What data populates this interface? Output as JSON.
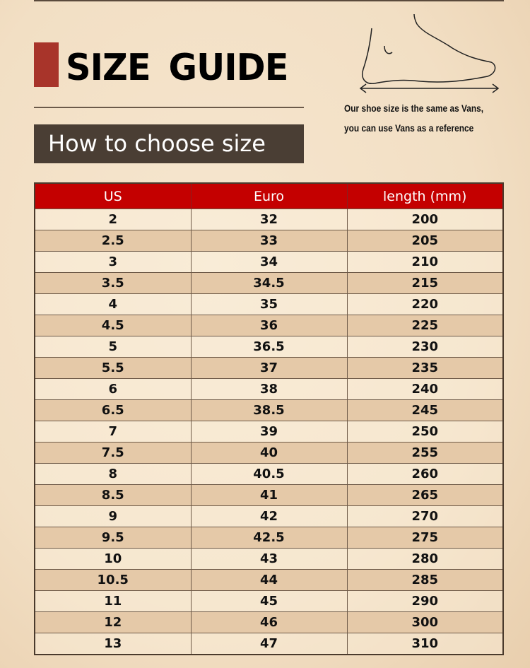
{
  "header": {
    "title": "SIZE  GUIDE",
    "subtitle": "How to choose size",
    "note_line1": "Our shoe size is the same as Vans,",
    "note_line2": "you can use Vans as a reference",
    "foot_icon": "foot-length-diagram-icon"
  },
  "colors": {
    "accent_red": "#c40000",
    "title_bar": "#a8342a",
    "subtitle_bg": "#4a3e34"
  },
  "table": {
    "columns": [
      "US",
      "Euro",
      "length (mm)"
    ],
    "rows": [
      [
        "2",
        "32",
        "200"
      ],
      [
        "2.5",
        "33",
        "205"
      ],
      [
        "3",
        "34",
        "210"
      ],
      [
        "3.5",
        "34.5",
        "215"
      ],
      [
        "4",
        "35",
        "220"
      ],
      [
        "4.5",
        "36",
        "225"
      ],
      [
        "5",
        "36.5",
        "230"
      ],
      [
        "5.5",
        "37",
        "235"
      ],
      [
        "6",
        "38",
        "240"
      ],
      [
        "6.5",
        "38.5",
        "245"
      ],
      [
        "7",
        "39",
        "250"
      ],
      [
        "7.5",
        "40",
        "255"
      ],
      [
        "8",
        "40.5",
        "260"
      ],
      [
        "8.5",
        "41",
        "265"
      ],
      [
        "9",
        "42",
        "270"
      ],
      [
        "9.5",
        "42.5",
        "275"
      ],
      [
        "10",
        "43",
        "280"
      ],
      [
        "10.5",
        "44",
        "285"
      ],
      [
        "11",
        "45",
        "290"
      ],
      [
        "12",
        "46",
        "300"
      ],
      [
        "13",
        "47",
        "310"
      ]
    ]
  }
}
